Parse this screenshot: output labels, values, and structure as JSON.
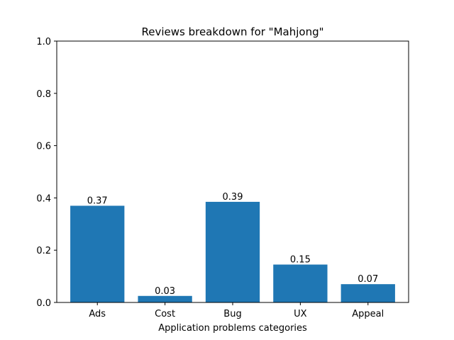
{
  "chart_data": {
    "type": "bar",
    "title": "Reviews breakdown for \"Mahjong\"",
    "xlabel": "Application problems categories",
    "ylabel": "",
    "categories": [
      "Ads",
      "Cost",
      "Bug",
      "UX",
      "Appeal"
    ],
    "values": [
      0.37,
      0.025,
      0.385,
      0.145,
      0.07
    ],
    "data_labels": [
      "0.37",
      "0.03",
      "0.39",
      "0.15",
      "0.07"
    ],
    "ylim": [
      0,
      1.0
    ],
    "yticks": [
      0.0,
      0.2,
      0.4,
      0.6,
      0.8,
      1.0
    ],
    "ytick_labels": [
      "0.0",
      "0.2",
      "0.4",
      "0.6",
      "0.8",
      "1.0"
    ],
    "bar_color": "#1f77b4",
    "grid": false,
    "legend": false
  }
}
